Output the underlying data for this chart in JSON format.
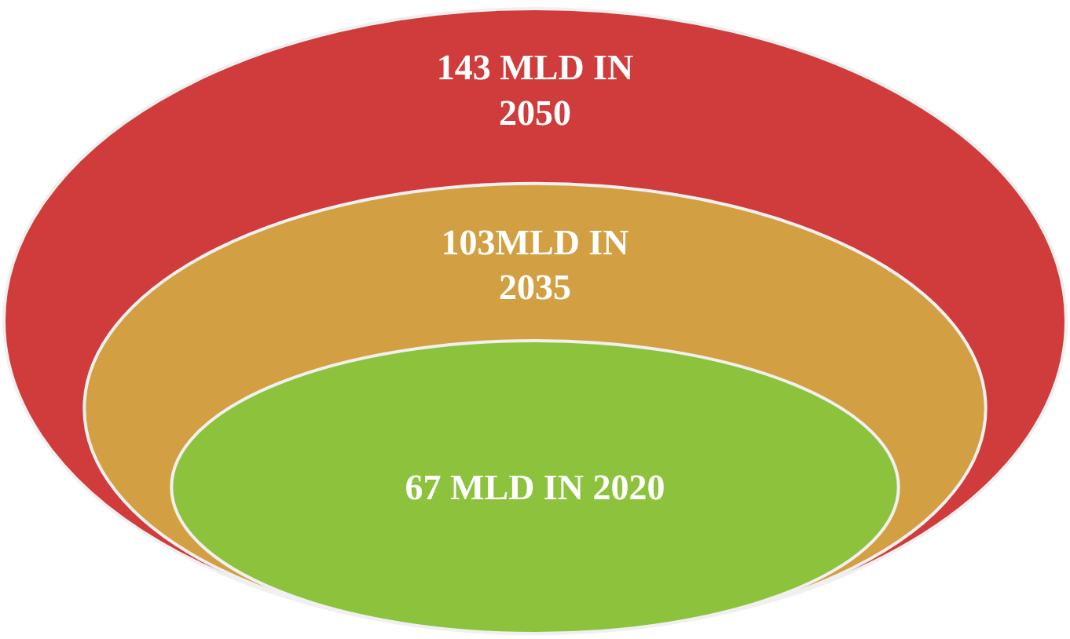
{
  "chart_data": {
    "type": "other",
    "values": [
      143,
      103,
      67
    ],
    "value_labels": [
      "143 MLD IN\n2050",
      "103MLD IN\n2035",
      "67 MLD IN 2020"
    ],
    "colors": [
      "#d03c3c",
      "#d2a042",
      "#8cc23c"
    ]
  }
}
